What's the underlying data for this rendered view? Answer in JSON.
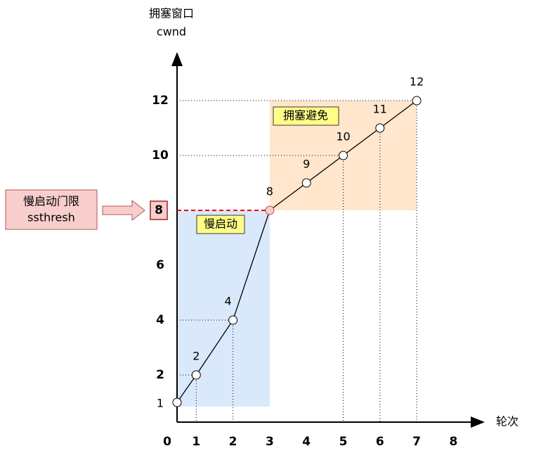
{
  "chart_data": {
    "type": "line",
    "y_label": "拥塞窗口",
    "y_label_sub": "cwnd",
    "x_label": "轮次",
    "x": [
      0,
      1,
      2,
      3,
      4,
      5,
      6,
      7
    ],
    "values": [
      1,
      2,
      4,
      8,
      9,
      10,
      11,
      12
    ],
    "color": "#000000",
    "xticks": [
      0,
      1,
      2,
      3,
      4,
      5,
      6,
      7,
      8
    ],
    "ylim": [
      0,
      13.5
    ],
    "yticks": [
      2,
      4,
      6,
      8,
      10,
      12
    ],
    "ssthresh": 8,
    "ssthresh_label": "慢启动门限",
    "ssthresh_label_sub": "ssthresh",
    "slow_start_label": "慢启动",
    "avoidance_label": "拥塞避免"
  }
}
